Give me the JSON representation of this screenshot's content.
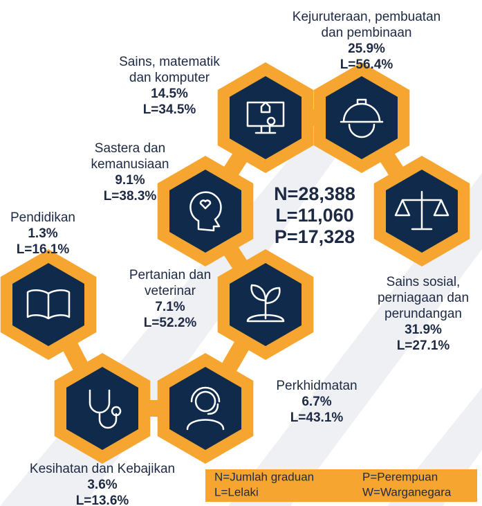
{
  "nodes": [
    {
      "label": [
        "Sains, matematik",
        "dan komputer"
      ],
      "pct": "14.5%",
      "male": "L=34.5%"
    },
    {
      "label": [
        "Kejuruteraan, pembuatan",
        "dan pembinaan"
      ],
      "pct": "25.9%",
      "male": "L=56.4%"
    },
    {
      "label": [
        "Sastera dan",
        "kemanusiaan"
      ],
      "pct": "9.1%",
      "male": "L=38.3%"
    },
    {
      "label": [
        "Sains sosial,",
        "perniagaan dan",
        "perundangan"
      ],
      "pct": "31.9%",
      "male": "L=27.1%"
    },
    {
      "label": [
        "Pertanian dan",
        "veterinar"
      ],
      "pct": "7.1%",
      "male": "L=52.2%"
    },
    {
      "label": [
        "Pendidikan"
      ],
      "pct": "1.3%",
      "male": "L=16.1%"
    },
    {
      "label": [
        "Kesihatan dan Kebajikan"
      ],
      "pct": "3.6%",
      "male": "L=13.6%"
    },
    {
      "label": [
        "Perkhidmatan"
      ],
      "pct": "6.7%",
      "male": "L=43.1%"
    }
  ],
  "totals": [
    "N=28,388",
    "L=11,060",
    "P=17,328"
  ],
  "legend": [
    "N=Jumlah graduan",
    "P=Perempuan",
    "L=Lelaki",
    "W=Warganegara"
  ]
}
